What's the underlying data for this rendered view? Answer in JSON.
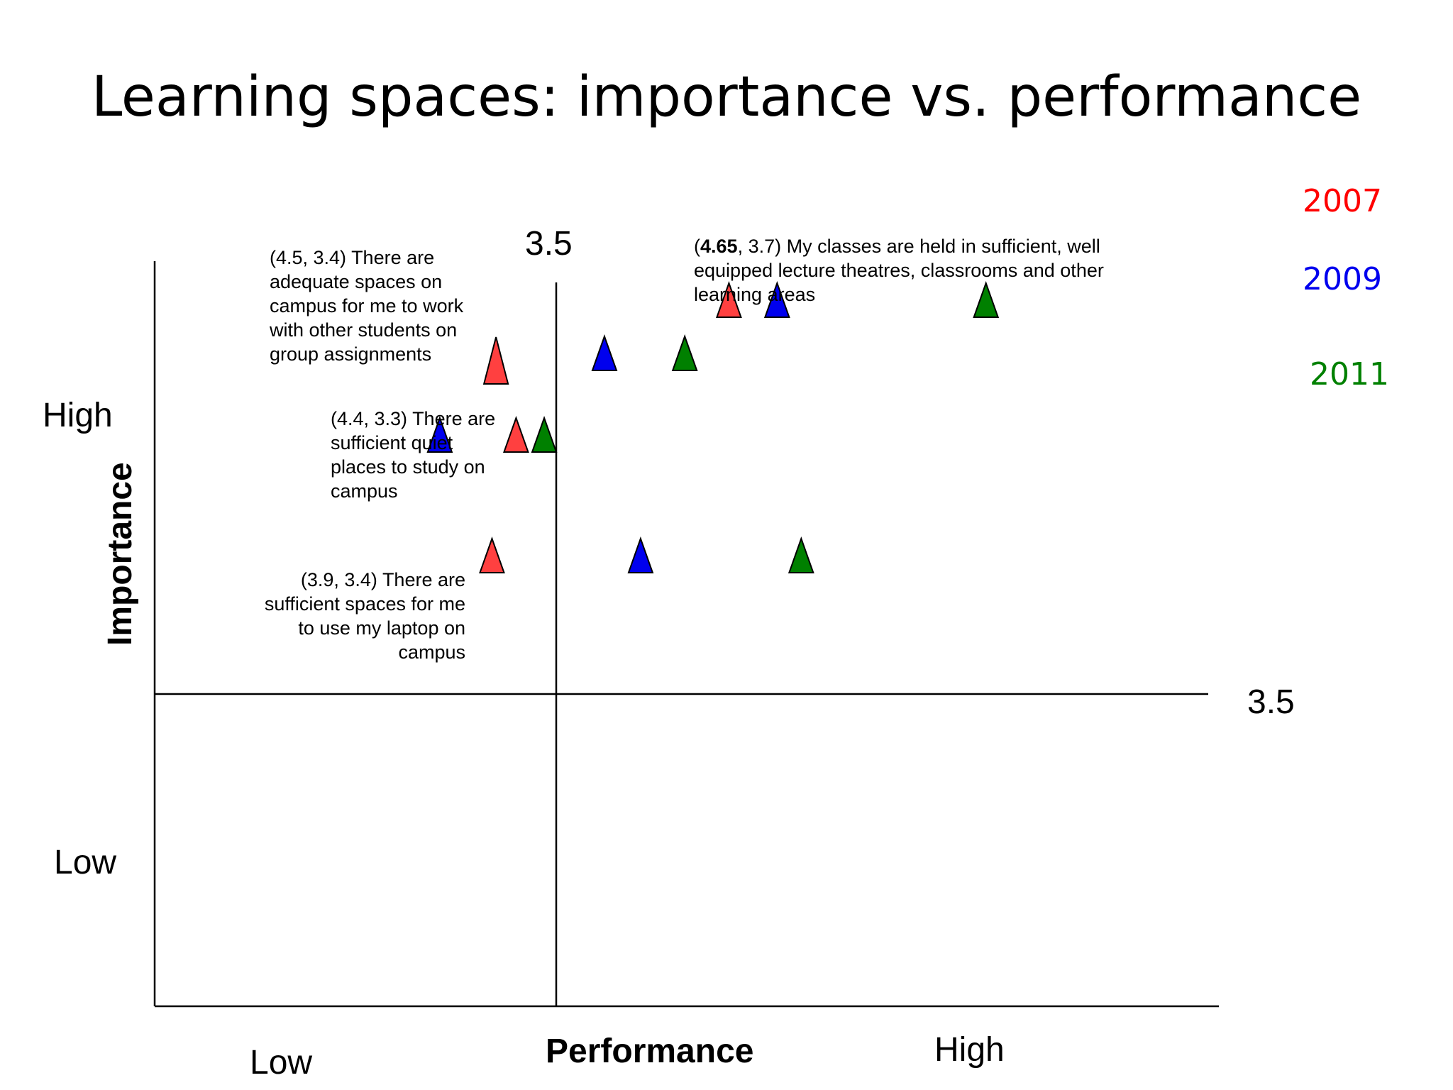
{
  "slide": {
    "title": "Learning spaces: importance vs. performance"
  },
  "legend": [
    {
      "label": "2007",
      "color": "#ff0000"
    },
    {
      "label": "2009",
      "color": "#0000ee"
    },
    {
      "label": "2011",
      "color": "#008000"
    }
  ],
  "chart_data": {
    "type": "scatter",
    "title": "Learning spaces: importance vs. performance",
    "xlabel": "Performance",
    "ylabel": "Importance",
    "x_low_label": "Low",
    "x_high_label": "High",
    "y_low_label": "Low",
    "y_high_label": "High",
    "x_threshold": 3.5,
    "y_threshold": 3.5,
    "x_threshold_label": "3.5",
    "y_threshold_label": "3.5",
    "xlim": [
      2.5,
      5.15
    ],
    "ylim": [
      2.7,
      4.8
    ],
    "marker": "triangle",
    "grid": false,
    "legend_position": "right",
    "series": [
      {
        "name": "2007",
        "color": "#ff4040",
        "points": [
          {
            "x": 3.93,
            "y": 4.69
          },
          {
            "x": 3.35,
            "y": 4.52
          },
          {
            "x": 3.4,
            "y": 4.31
          },
          {
            "x": 3.34,
            "y": 3.97
          }
        ]
      },
      {
        "name": "2009",
        "color": "#0000ee",
        "points": [
          {
            "x": 4.05,
            "y": 4.69
          },
          {
            "x": 3.62,
            "y": 4.54
          },
          {
            "x": 3.21,
            "y": 4.31
          },
          {
            "x": 3.71,
            "y": 3.97
          }
        ]
      },
      {
        "name": "2011",
        "color": "#008000",
        "points": [
          {
            "x": 4.57,
            "y": 4.69
          },
          {
            "x": 3.82,
            "y": 4.54
          },
          {
            "x": 3.47,
            "y": 4.31
          },
          {
            "x": 4.11,
            "y": 3.97
          }
        ]
      }
    ],
    "annotations": [
      {
        "prefix": "(",
        "bold": "4.65",
        "lines": [
          ", 3.7) My classes are held in sufficient, well",
          "equipped lecture theatres, classrooms and other",
          "learning areas"
        ]
      },
      {
        "lines": [
          "(4.5, 3.4) There are",
          "adequate spaces on",
          "campus for me to work",
          "with other students on",
          "group assignments"
        ]
      },
      {
        "lines": [
          "(4.4, 3.3) There are",
          "sufficient quiet",
          "places to study on",
          "campus"
        ]
      },
      {
        "lines": [
          "(3.9, 3.4) There are",
          "sufficient spaces for me",
          "to use my laptop on",
          "campus"
        ]
      }
    ]
  }
}
